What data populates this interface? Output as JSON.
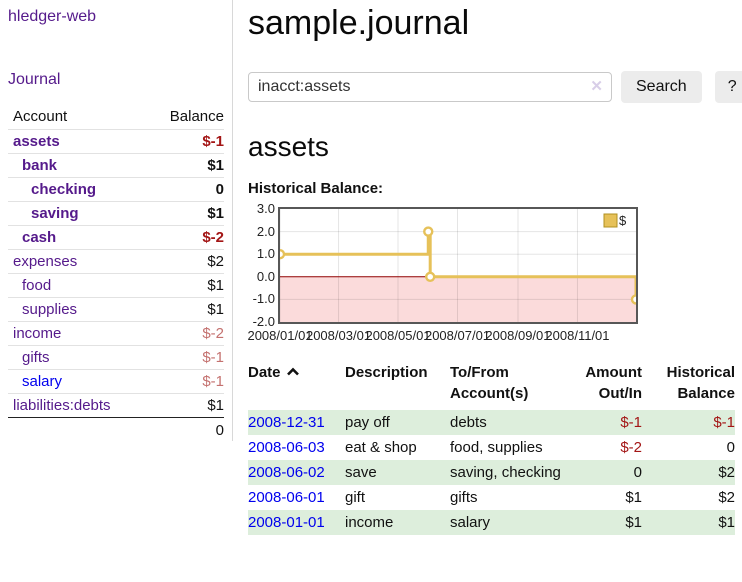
{
  "app": {
    "brand": "hledger-web"
  },
  "sidebar": {
    "nav": {
      "journal_label": "Journal"
    },
    "accounts_table": {
      "headers": {
        "account": "Account",
        "balance": "Balance"
      },
      "accounts": [
        {
          "name": "assets",
          "depth": 1,
          "bold": true,
          "balance": "$-1",
          "balance_tone": "negative-strong"
        },
        {
          "name": "bank",
          "depth": 2,
          "bold": true,
          "balance": "$1",
          "balance_tone": ""
        },
        {
          "name": "checking",
          "depth": 3,
          "bold": true,
          "balance": "0",
          "balance_tone": ""
        },
        {
          "name": "saving",
          "depth": 3,
          "bold": true,
          "balance": "$1",
          "balance_tone": ""
        },
        {
          "name": "cash",
          "depth": 2,
          "bold": true,
          "balance": "$-2",
          "balance_tone": "negative-strong"
        },
        {
          "name": "expenses",
          "depth": 1,
          "bold": false,
          "balance": "$2",
          "balance_tone": ""
        },
        {
          "name": "food",
          "depth": 2,
          "bold": false,
          "balance": "$1",
          "balance_tone": ""
        },
        {
          "name": "supplies",
          "depth": 2,
          "bold": false,
          "balance": "$1",
          "balance_tone": ""
        },
        {
          "name": "income",
          "depth": 1,
          "bold": false,
          "balance": "$-2",
          "balance_tone": "negative-soft"
        },
        {
          "name": "gifts",
          "depth": 2,
          "bold": false,
          "balance": "$-1",
          "balance_tone": "negative-soft"
        },
        {
          "name": "salary",
          "depth": 2,
          "bold": false,
          "balance": "$-1",
          "balance_tone": "negative-soft",
          "link_color": "blue"
        },
        {
          "name": "liabilities:debts",
          "depth": 1,
          "bold": false,
          "balance": "$1",
          "balance_tone": ""
        }
      ],
      "total": "0"
    }
  },
  "header": {
    "title": "sample.journal"
  },
  "search": {
    "value": "inacct:assets",
    "clear_icon": "✕",
    "button_label": "Search",
    "help_label": "?"
  },
  "account_page": {
    "heading": "assets",
    "chart_label": "Historical Balance:"
  },
  "chart_data": {
    "type": "line",
    "subtype": "step",
    "title": "Historical Balance:",
    "ylim": [
      -2,
      3
    ],
    "yticks": [
      "3.0",
      "2.0",
      "1.0",
      "0.0",
      "-1.0",
      "-2.0"
    ],
    "x_range": [
      "2008-01-01",
      "2008-12-31"
    ],
    "xtick_labels": [
      "2008/01/01",
      "2008/03/01",
      "2008/05/01",
      "2008/07/01",
      "2008/09/01",
      "2008/11/01"
    ],
    "grid": true,
    "legend_position": "top-right",
    "series": [
      {
        "name": "$",
        "color": "#E6C159",
        "points": [
          {
            "date": "2008-01-01",
            "value": 1
          },
          {
            "date": "2008-06-01",
            "value": 2
          },
          {
            "date": "2008-06-03",
            "value": 0
          },
          {
            "date": "2008-12-31",
            "value": -1
          }
        ]
      }
    ],
    "negative_fill": "#FBDBDB",
    "zero_line_color": "#900000",
    "border_color": "#575757"
  },
  "register_table": {
    "headers": {
      "date": "Date",
      "description": "Description",
      "accounts": "To/From Account(s)",
      "amount": "Amount Out/In",
      "balance": "Historical Balance"
    },
    "rows": [
      {
        "date": "2008-12-31",
        "description": "pay off",
        "accounts": "debts",
        "amount": "$-1",
        "balance": "$-1",
        "shaded": true
      },
      {
        "date": "2008-06-03",
        "description": "eat & shop",
        "accounts": "food, supplies",
        "amount": "$-2",
        "balance": "0",
        "shaded": false
      },
      {
        "date": "2008-06-02",
        "description": "save",
        "accounts": "saving, checking",
        "amount": "0",
        "balance": "$2",
        "shaded": true
      },
      {
        "date": "2008-06-01",
        "description": "gift",
        "accounts": "gifts",
        "amount": "$1",
        "balance": "$2",
        "shaded": false
      },
      {
        "date": "2008-01-01",
        "description": "income",
        "accounts": "salary",
        "amount": "$1",
        "balance": "$1",
        "shaded": true
      }
    ]
  },
  "colors": {
    "link_purple": "#551A8B",
    "link_blue": "#0000EE",
    "negative_strong": "#A31515",
    "negative_soft": "#C4716F",
    "row_shaded_green": "#DDEEDC",
    "series_gold": "#E6C159",
    "negative_region_pink": "#FBDBDB",
    "zero_line_red": "#900000"
  }
}
